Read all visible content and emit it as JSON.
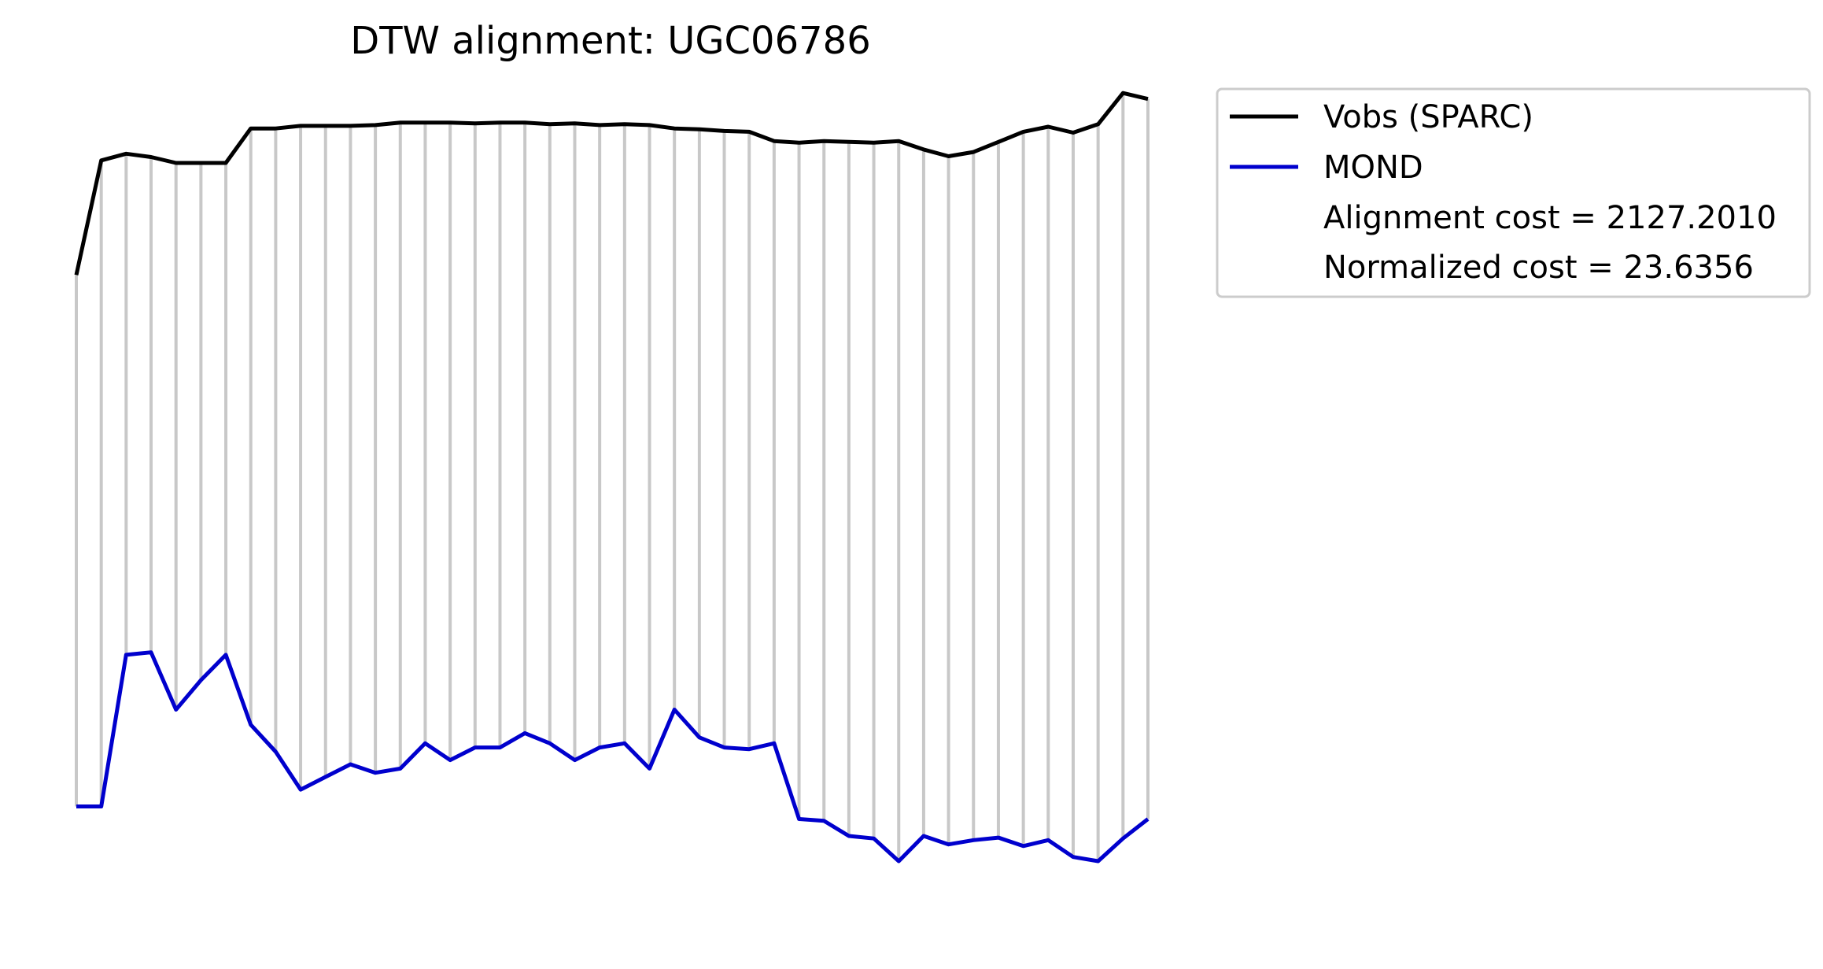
{
  "chart_data": {
    "type": "line",
    "title": "DTW alignment: UGC06786",
    "xlabel": "",
    "ylabel": "",
    "axes_visible": false,
    "grid": false,
    "legend_placement": "outside-top-right",
    "colors": {
      "vobs": "#000000",
      "mond": "#0000cd",
      "alignment_lines": "#c8c8c8"
    },
    "series": [
      {
        "name": "Vobs (SPARC)",
        "values": [
          0.781,
          0.917,
          0.925,
          0.921,
          0.914,
          0.914,
          0.914,
          0.955,
          0.955,
          0.958,
          0.958,
          0.958,
          0.959,
          0.962,
          0.962,
          0.962,
          0.961,
          0.962,
          0.962,
          0.96,
          0.961,
          0.959,
          0.96,
          0.959,
          0.955,
          0.954,
          0.952,
          0.951,
          0.94,
          0.938,
          0.94,
          0.939,
          0.938,
          0.94,
          0.93,
          0.922,
          0.927,
          0.939,
          0.951,
          0.957,
          0.95,
          0.96,
          0.997,
          0.99
        ]
      },
      {
        "name": "MOND",
        "values": [
          0.15,
          0.15,
          0.33,
          0.333,
          0.265,
          0.3,
          0.33,
          0.247,
          0.215,
          0.17,
          0.185,
          0.2,
          0.19,
          0.195,
          0.225,
          0.205,
          0.22,
          0.22,
          0.237,
          0.225,
          0.205,
          0.22,
          0.225,
          0.195,
          0.265,
          0.232,
          0.22,
          0.218,
          0.225,
          0.135,
          0.133,
          0.115,
          0.112,
          0.085,
          0.115,
          0.105,
          0.11,
          0.113,
          0.103,
          0.11,
          0.09,
          0.085,
          0.112,
          0.135
        ]
      }
    ],
    "alignment_pairs": [
      [
        0,
        0
      ],
      [
        1,
        1
      ],
      [
        2,
        2
      ],
      [
        3,
        3
      ],
      [
        4,
        4
      ],
      [
        5,
        5
      ],
      [
        6,
        6
      ],
      [
        7,
        7
      ],
      [
        8,
        8
      ],
      [
        9,
        9
      ],
      [
        10,
        10
      ],
      [
        11,
        11
      ],
      [
        12,
        12
      ],
      [
        13,
        13
      ],
      [
        14,
        14
      ],
      [
        15,
        15
      ],
      [
        16,
        16
      ],
      [
        17,
        17
      ],
      [
        18,
        18
      ],
      [
        19,
        19
      ],
      [
        20,
        20
      ],
      [
        21,
        21
      ],
      [
        22,
        22
      ],
      [
        23,
        23
      ],
      [
        24,
        24
      ],
      [
        25,
        25
      ],
      [
        26,
        26
      ],
      [
        27,
        27
      ],
      [
        28,
        28
      ],
      [
        29,
        29
      ],
      [
        30,
        30
      ],
      [
        31,
        31
      ],
      [
        32,
        32
      ],
      [
        33,
        33
      ],
      [
        34,
        34
      ],
      [
        35,
        35
      ],
      [
        36,
        36
      ],
      [
        37,
        37
      ],
      [
        38,
        38
      ],
      [
        39,
        39
      ],
      [
        40,
        40
      ],
      [
        41,
        41
      ],
      [
        42,
        42
      ],
      [
        43,
        43
      ]
    ],
    "annotations": {
      "alignment_cost": "Alignment cost = 2127.2010",
      "normalized_cost": "Normalized cost = 23.6356"
    }
  }
}
